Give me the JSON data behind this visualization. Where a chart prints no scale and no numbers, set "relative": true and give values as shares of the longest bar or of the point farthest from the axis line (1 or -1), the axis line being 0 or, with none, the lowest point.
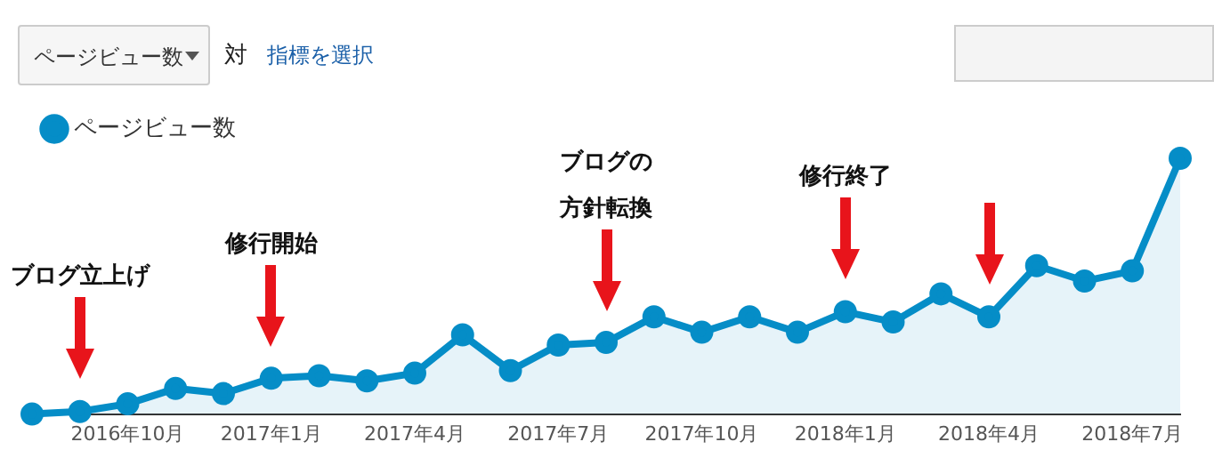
{
  "chart_data": {
    "type": "area",
    "relative": true,
    "legend": "top left",
    "marker": "circle",
    "categories": [
      null,
      null,
      "2016年10月",
      null,
      null,
      "2017年1月",
      null,
      null,
      "2017年4月",
      null,
      null,
      "2017年7月",
      null,
      null,
      "2017年10月",
      null,
      null,
      "2018年1月",
      null,
      null,
      "2018年4月",
      null,
      null,
      "2018年7月",
      null
    ],
    "series": [
      {
        "name": "ページビュー数",
        "color": "#058dc7",
        "values": [
          0,
          0.01,
          0.04,
          0.1,
          0.08,
          0.14,
          0.15,
          0.13,
          0.16,
          0.31,
          0.17,
          0.27,
          0.28,
          0.38,
          0.32,
          0.38,
          0.32,
          0.4,
          0.36,
          0.47,
          0.38,
          0.58,
          0.52,
          0.56,
          1
        ]
      }
    ],
    "annotations": [
      "ページビュー数",
      "対",
      "指標を選択",
      "ブログ立上げ",
      "修行開始",
      "ブログの方針転換",
      "修行終了"
    ]
  }
}
